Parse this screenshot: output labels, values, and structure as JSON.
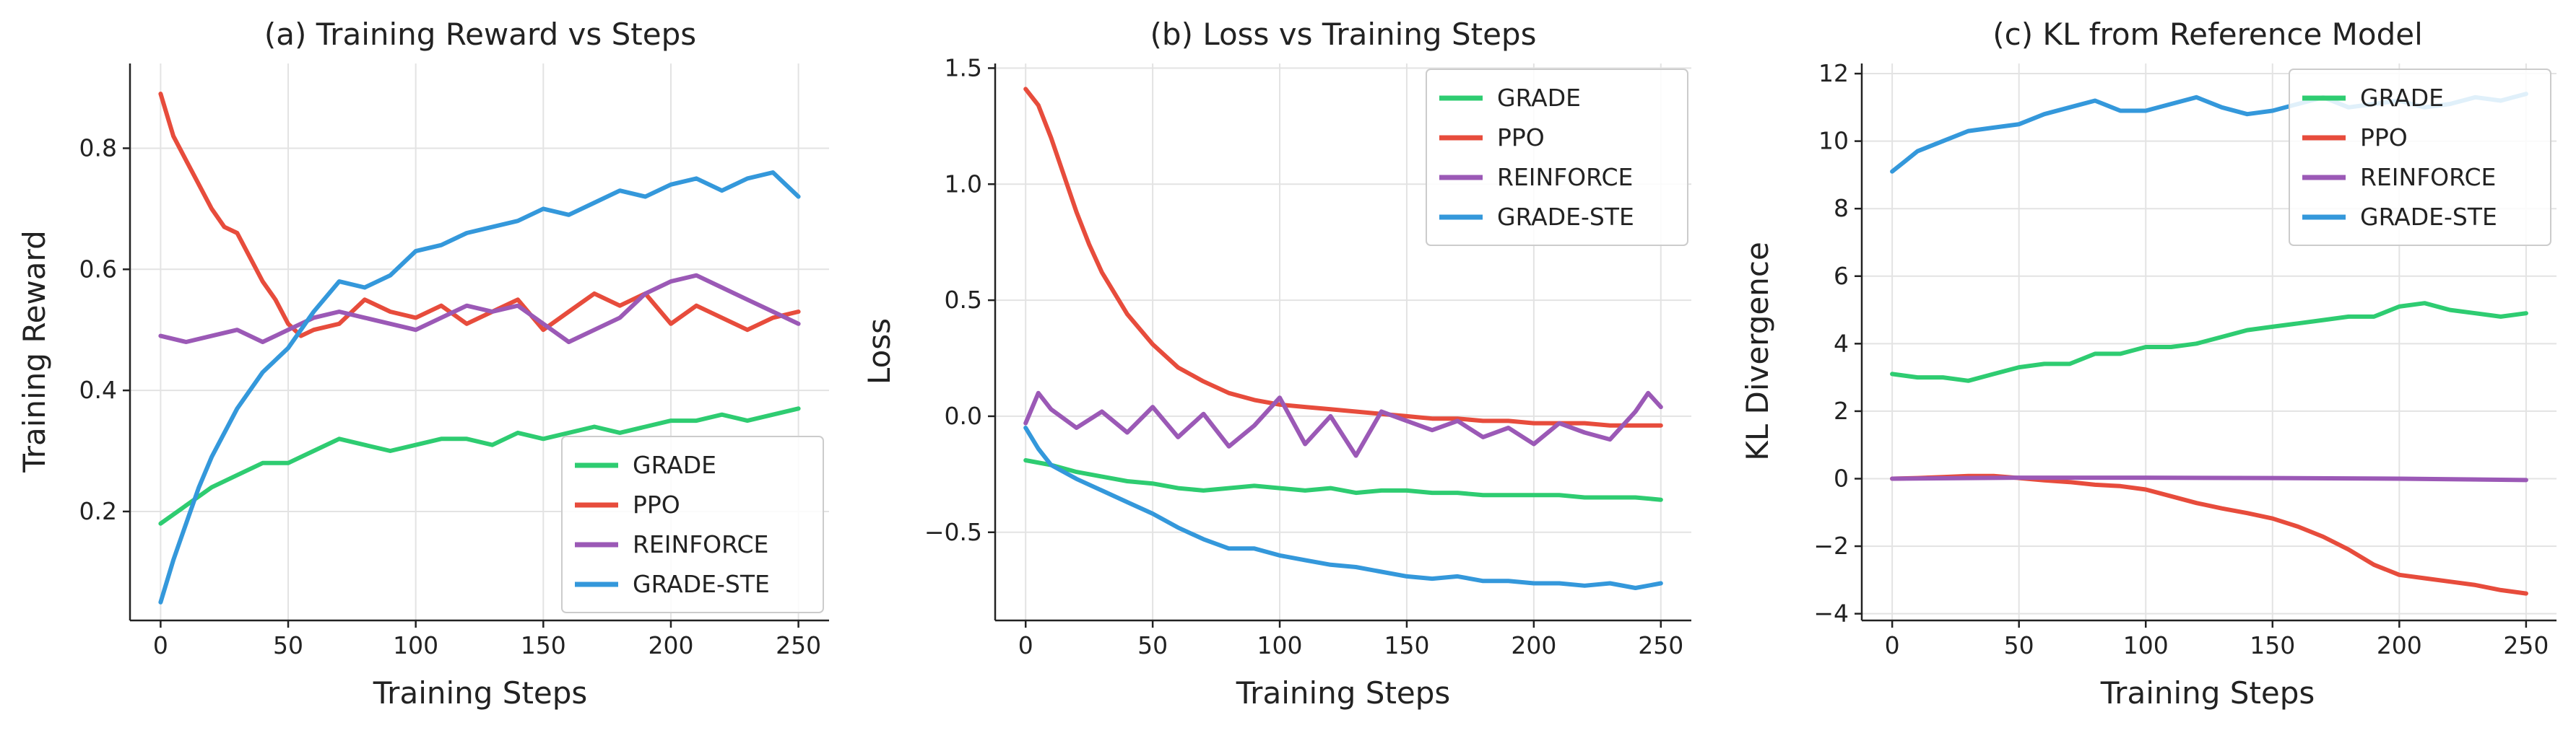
{
  "colors": {
    "GRADE": "#2ecc71",
    "PPO": "#e74c3c",
    "REINFORCE": "#9b59b6",
    "GRADE-STE": "#3498db"
  },
  "chart_data": [
    {
      "type": "line",
      "title": "(a) Training Reward vs Steps",
      "xlabel": "Training Steps",
      "ylabel": "Training Reward",
      "xlim": [
        -12,
        262
      ],
      "ylim": [
        0.02,
        0.94
      ],
      "xticks": [
        0,
        50,
        100,
        150,
        200,
        250
      ],
      "yticks": [
        0.2,
        0.4,
        0.6,
        0.8
      ],
      "ytick_labels": [
        "0.2",
        "0.4",
        "0.6",
        "0.8"
      ],
      "legend": "lower-right",
      "grid": true,
      "series": [
        {
          "name": "GRADE",
          "x": [
            0,
            10,
            20,
            30,
            40,
            50,
            60,
            70,
            80,
            90,
            100,
            110,
            120,
            130,
            140,
            150,
            160,
            170,
            180,
            190,
            200,
            210,
            220,
            230,
            240,
            250
          ],
          "y": [
            0.18,
            0.21,
            0.24,
            0.26,
            0.28,
            0.28,
            0.3,
            0.32,
            0.31,
            0.3,
            0.31,
            0.32,
            0.32,
            0.31,
            0.33,
            0.32,
            0.33,
            0.34,
            0.33,
            0.34,
            0.35,
            0.35,
            0.36,
            0.35,
            0.36,
            0.37
          ]
        },
        {
          "name": "PPO",
          "x": [
            0,
            5,
            10,
            15,
            20,
            25,
            30,
            35,
            40,
            45,
            50,
            55,
            60,
            70,
            80,
            90,
            100,
            110,
            120,
            130,
            140,
            150,
            160,
            170,
            180,
            190,
            200,
            210,
            220,
            230,
            240,
            250
          ],
          "y": [
            0.89,
            0.82,
            0.78,
            0.74,
            0.7,
            0.67,
            0.66,
            0.62,
            0.58,
            0.55,
            0.51,
            0.49,
            0.5,
            0.51,
            0.55,
            0.53,
            0.52,
            0.54,
            0.51,
            0.53,
            0.55,
            0.5,
            0.53,
            0.56,
            0.54,
            0.56,
            0.51,
            0.54,
            0.52,
            0.5,
            0.52,
            0.53
          ]
        },
        {
          "name": "REINFORCE",
          "x": [
            0,
            10,
            20,
            30,
            40,
            50,
            60,
            70,
            80,
            90,
            100,
            110,
            120,
            130,
            140,
            150,
            160,
            170,
            180,
            190,
            200,
            210,
            220,
            230,
            240,
            250
          ],
          "y": [
            0.49,
            0.48,
            0.49,
            0.5,
            0.48,
            0.5,
            0.52,
            0.53,
            0.52,
            0.51,
            0.5,
            0.52,
            0.54,
            0.53,
            0.54,
            0.51,
            0.48,
            0.5,
            0.52,
            0.56,
            0.58,
            0.59,
            0.57,
            0.55,
            0.53,
            0.51
          ]
        },
        {
          "name": "GRADE-STE",
          "x": [
            0,
            5,
            10,
            15,
            20,
            30,
            40,
            50,
            60,
            70,
            80,
            90,
            100,
            110,
            120,
            130,
            140,
            150,
            160,
            170,
            180,
            190,
            200,
            210,
            220,
            230,
            240,
            250
          ],
          "y": [
            0.05,
            0.12,
            0.18,
            0.24,
            0.29,
            0.37,
            0.43,
            0.47,
            0.53,
            0.58,
            0.57,
            0.59,
            0.63,
            0.64,
            0.66,
            0.67,
            0.68,
            0.7,
            0.69,
            0.71,
            0.73,
            0.72,
            0.74,
            0.75,
            0.73,
            0.75,
            0.76,
            0.72
          ]
        }
      ]
    },
    {
      "type": "line",
      "title": "(b) Loss vs Training Steps",
      "xlabel": "Training Steps",
      "ylabel": "Loss",
      "xlim": [
        -12,
        262
      ],
      "ylim": [
        -0.88,
        1.52
      ],
      "xticks": [
        0,
        50,
        100,
        150,
        200,
        250
      ],
      "yticks": [
        -0.5,
        0.0,
        0.5,
        1.0,
        1.5
      ],
      "ytick_labels": [
        "−0.5",
        "0.0",
        "0.5",
        "1.0",
        "1.5"
      ],
      "legend": "top-right",
      "grid": true,
      "series": [
        {
          "name": "GRADE",
          "x": [
            0,
            10,
            20,
            30,
            40,
            50,
            60,
            70,
            80,
            90,
            100,
            110,
            120,
            130,
            140,
            150,
            160,
            170,
            180,
            190,
            200,
            210,
            220,
            230,
            240,
            250
          ],
          "y": [
            -0.19,
            -0.21,
            -0.24,
            -0.26,
            -0.28,
            -0.29,
            -0.31,
            -0.32,
            -0.31,
            -0.3,
            -0.31,
            -0.32,
            -0.31,
            -0.33,
            -0.32,
            -0.32,
            -0.33,
            -0.33,
            -0.34,
            -0.34,
            -0.34,
            -0.34,
            -0.35,
            -0.35,
            -0.35,
            -0.36
          ]
        },
        {
          "name": "PPO",
          "x": [
            0,
            5,
            10,
            15,
            20,
            25,
            30,
            40,
            50,
            60,
            70,
            80,
            90,
            100,
            110,
            120,
            130,
            140,
            150,
            160,
            170,
            180,
            190,
            200,
            210,
            220,
            230,
            240,
            250
          ],
          "y": [
            1.41,
            1.34,
            1.2,
            1.04,
            0.88,
            0.74,
            0.62,
            0.44,
            0.31,
            0.21,
            0.15,
            0.1,
            0.07,
            0.05,
            0.04,
            0.03,
            0.02,
            0.01,
            0.0,
            -0.01,
            -0.01,
            -0.02,
            -0.02,
            -0.03,
            -0.03,
            -0.03,
            -0.04,
            -0.04,
            -0.04
          ]
        },
        {
          "name": "REINFORCE",
          "x": [
            0,
            5,
            10,
            20,
            30,
            40,
            50,
            60,
            70,
            80,
            90,
            100,
            110,
            120,
            130,
            140,
            150,
            160,
            170,
            180,
            190,
            200,
            210,
            220,
            230,
            240,
            245,
            250
          ],
          "y": [
            -0.03,
            0.1,
            0.03,
            -0.05,
            0.02,
            -0.07,
            0.04,
            -0.09,
            0.01,
            -0.13,
            -0.04,
            0.08,
            -0.12,
            0.0,
            -0.17,
            0.02,
            -0.02,
            -0.06,
            -0.02,
            -0.09,
            -0.05,
            -0.12,
            -0.03,
            -0.07,
            -0.1,
            0.02,
            0.1,
            0.04
          ]
        },
        {
          "name": "GRADE-STE",
          "x": [
            0,
            5,
            10,
            20,
            30,
            40,
            50,
            60,
            70,
            80,
            90,
            100,
            110,
            120,
            130,
            140,
            150,
            160,
            170,
            180,
            190,
            200,
            210,
            220,
            230,
            240,
            250
          ],
          "y": [
            -0.05,
            -0.14,
            -0.21,
            -0.27,
            -0.32,
            -0.37,
            -0.42,
            -0.48,
            -0.53,
            -0.57,
            -0.57,
            -0.6,
            -0.62,
            -0.64,
            -0.65,
            -0.67,
            -0.69,
            -0.7,
            -0.69,
            -0.71,
            -0.71,
            -0.72,
            -0.72,
            -0.73,
            -0.72,
            -0.74,
            -0.72
          ]
        }
      ]
    },
    {
      "type": "line",
      "title": "(c) KL from Reference Model",
      "xlabel": "Training Steps",
      "ylabel": "KL Divergence",
      "xlim": [
        -12,
        262
      ],
      "ylim": [
        -4.2,
        12.3
      ],
      "xticks": [
        0,
        50,
        100,
        150,
        200,
        250
      ],
      "yticks": [
        -4,
        -2,
        0,
        2,
        4,
        6,
        8,
        10,
        12
      ],
      "ytick_labels": [
        "−4",
        "−2",
        "0",
        "2",
        "4",
        "6",
        "8",
        "10",
        "12"
      ],
      "legend": "top-right",
      "grid": true,
      "series": [
        {
          "name": "GRADE",
          "x": [
            0,
            10,
            20,
            30,
            40,
            50,
            60,
            70,
            80,
            90,
            100,
            110,
            120,
            130,
            140,
            150,
            160,
            170,
            180,
            190,
            200,
            210,
            220,
            230,
            240,
            250
          ],
          "y": [
            3.1,
            3.0,
            3.0,
            2.9,
            3.1,
            3.3,
            3.4,
            3.4,
            3.7,
            3.7,
            3.9,
            3.9,
            4.0,
            4.2,
            4.4,
            4.5,
            4.6,
            4.7,
            4.8,
            4.8,
            5.1,
            5.2,
            5.0,
            4.9,
            4.8,
            4.9
          ]
        },
        {
          "name": "PPO",
          "x": [
            0,
            10,
            20,
            30,
            40,
            50,
            60,
            70,
            80,
            90,
            100,
            110,
            120,
            130,
            140,
            150,
            160,
            170,
            180,
            190,
            200,
            210,
            220,
            230,
            240,
            250
          ],
          "y": [
            0.0,
            0.02,
            0.05,
            0.08,
            0.08,
            0.02,
            -0.05,
            -0.1,
            -0.18,
            -0.22,
            -0.32,
            -0.52,
            -0.72,
            -0.88,
            -1.02,
            -1.18,
            -1.42,
            -1.72,
            -2.1,
            -2.55,
            -2.85,
            -2.95,
            -3.05,
            -3.15,
            -3.3,
            -3.4
          ]
        },
        {
          "name": "REINFORCE",
          "x": [
            0,
            50,
            100,
            150,
            200,
            250
          ],
          "y": [
            0.0,
            0.03,
            0.03,
            0.02,
            0.0,
            -0.04
          ]
        },
        {
          "name": "GRADE-STE",
          "x": [
            0,
            5,
            10,
            20,
            30,
            40,
            50,
            60,
            70,
            80,
            90,
            100,
            110,
            120,
            130,
            140,
            150,
            160,
            170,
            180,
            190,
            200,
            210,
            220,
            230,
            240,
            250
          ],
          "y": [
            9.1,
            9.4,
            9.7,
            10.0,
            10.3,
            10.4,
            10.5,
            10.8,
            11.0,
            11.2,
            10.9,
            10.9,
            11.1,
            11.3,
            11.0,
            10.8,
            10.9,
            11.1,
            11.3,
            11.0,
            11.1,
            11.2,
            11.0,
            11.1,
            11.3,
            11.2,
            11.4
          ]
        }
      ]
    }
  ]
}
